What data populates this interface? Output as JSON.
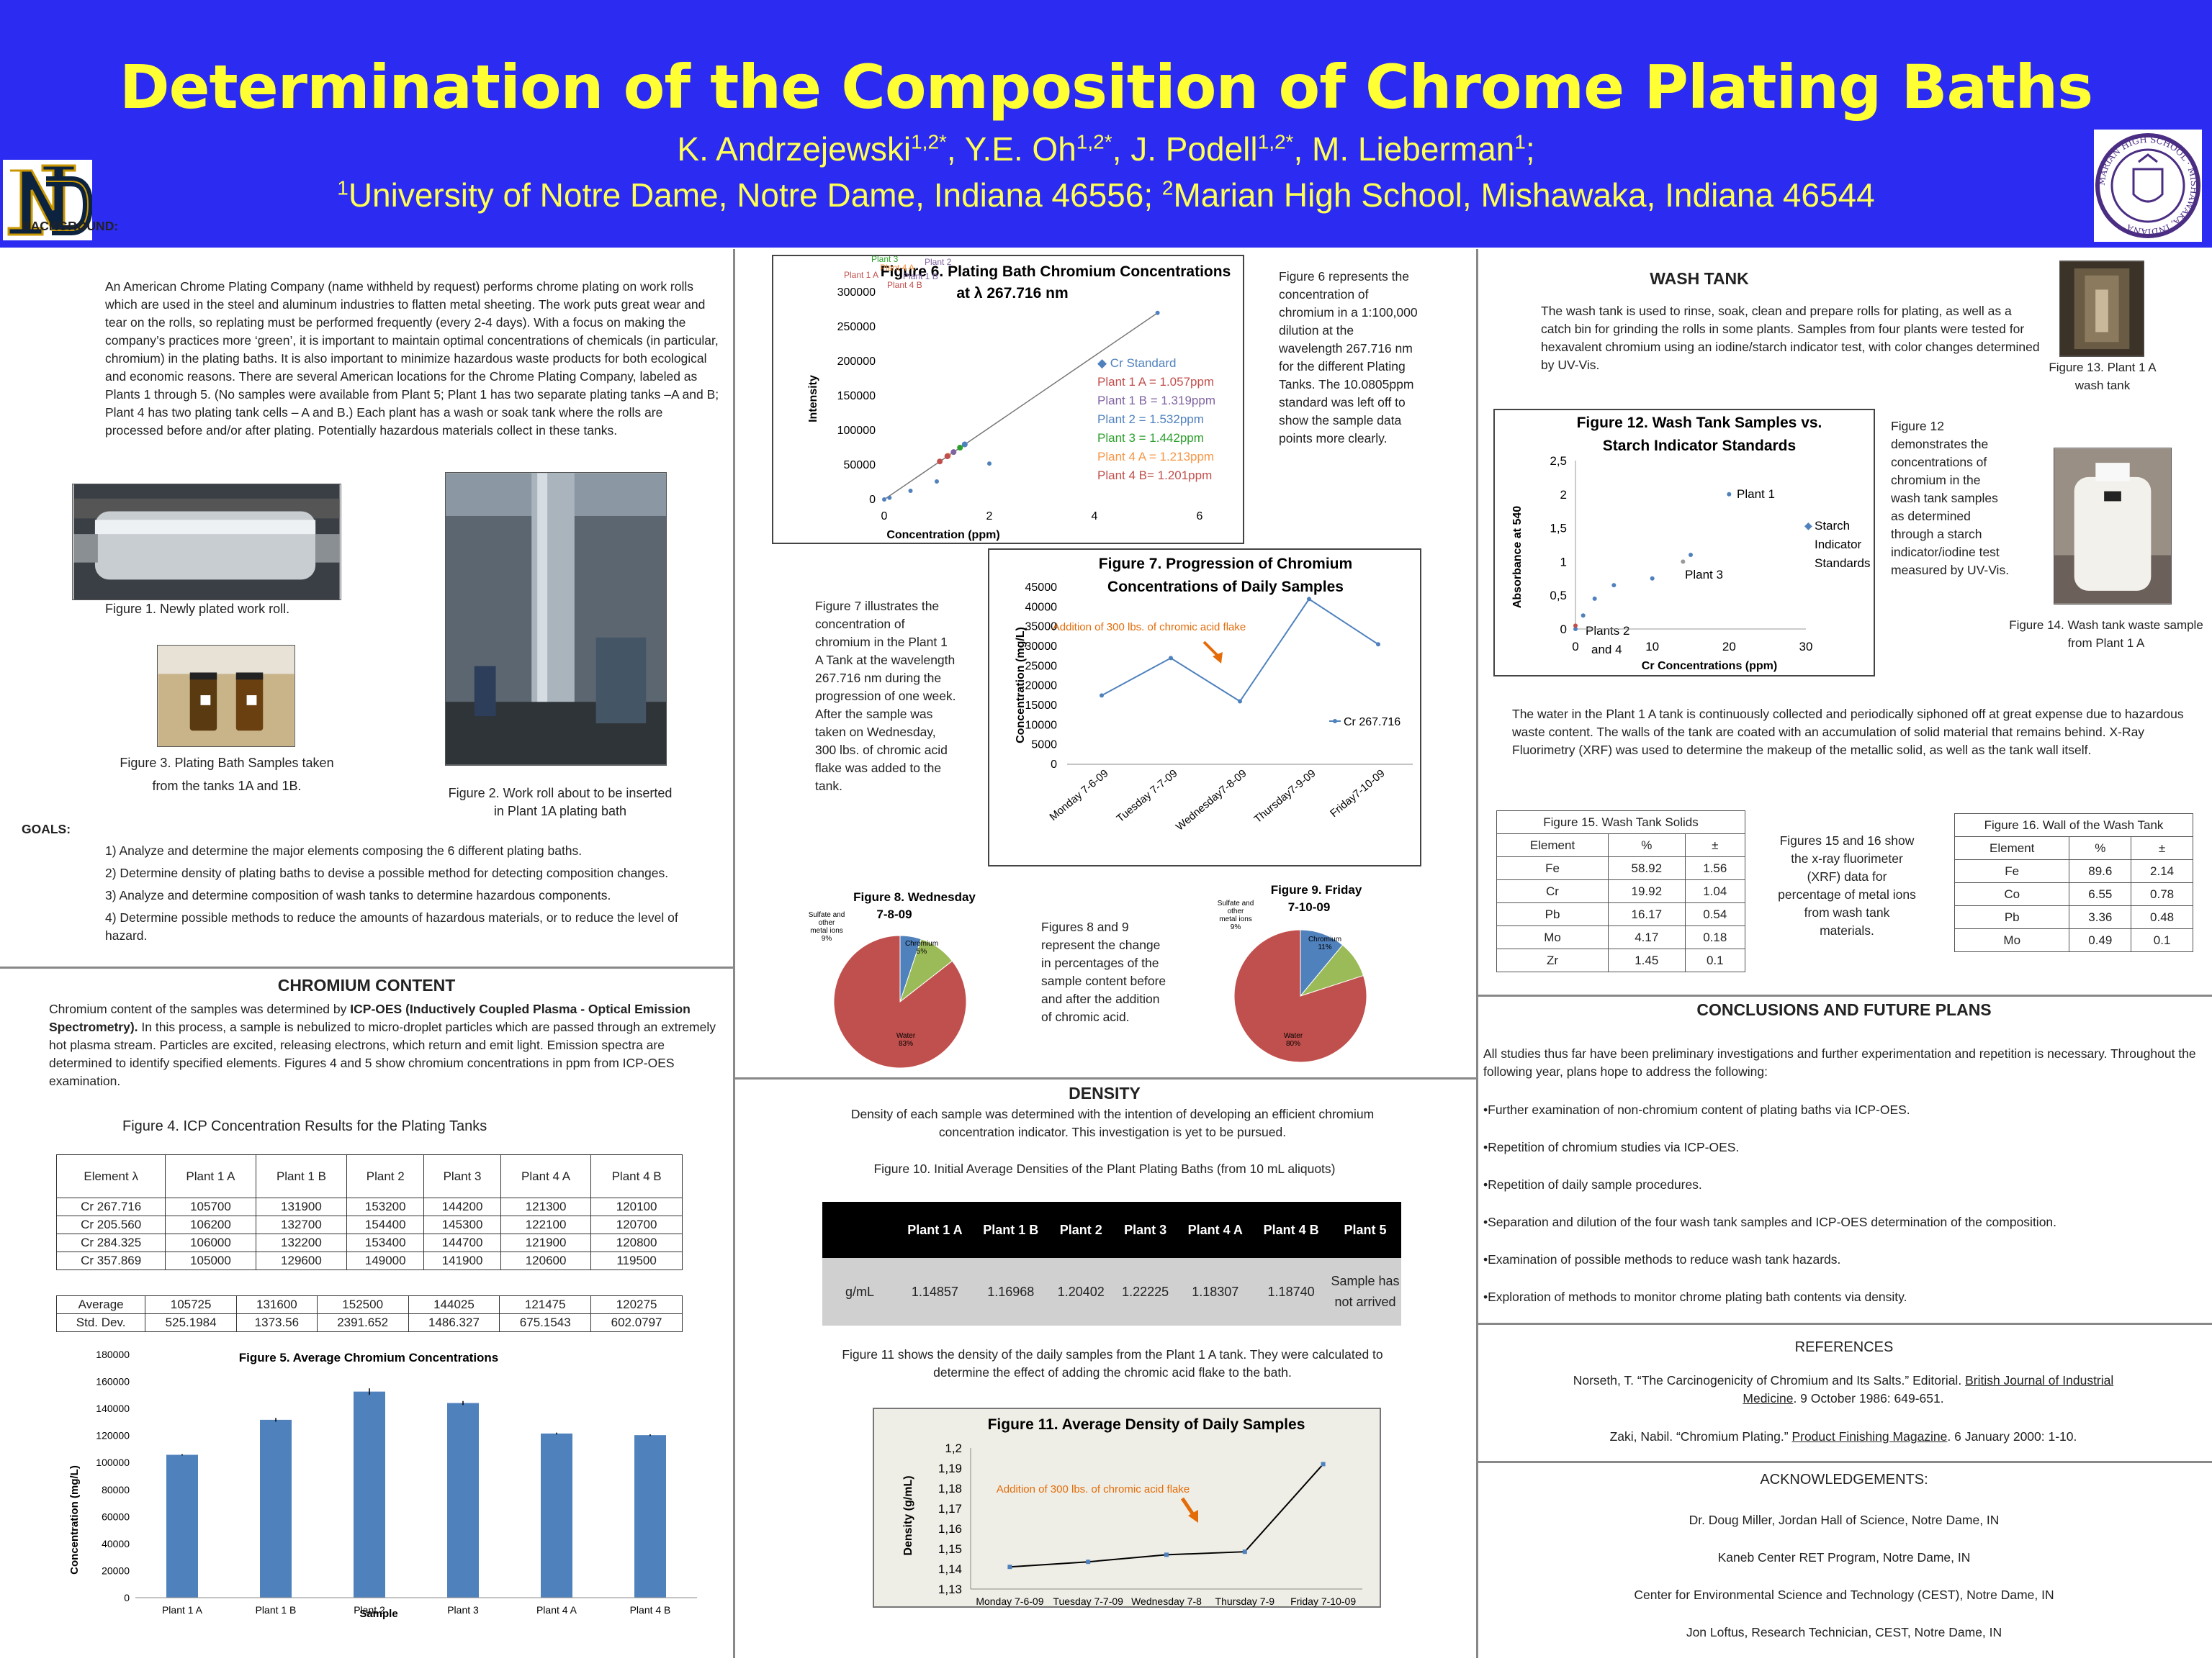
{
  "header": {
    "title": "Determination of the Composition of Chrome Plating Baths",
    "authors": [
      {
        "name": "K. Andrzejewski",
        "sup": "1,2*"
      },
      {
        "name": "Y.E. Oh",
        "sup": "1,2*"
      },
      {
        "name": "J. Podell",
        "sup": "1,2*"
      },
      {
        "name": "M. Lieberman",
        "sup": "1"
      }
    ],
    "aff1_sup": "1",
    "aff1": "University of Notre Dame, Notre Dame, Indiana 46556;",
    "aff2_sup": "2",
    "aff2": "Marian High School, Mishawaka, Indiana 46544",
    "seal_text": "MARIAN HIGH SCHOOL · MISHAWAKA, INDIANA",
    "colors": {
      "banner": "#2b2bf2",
      "title": "#ffff33"
    }
  },
  "background": {
    "heading": "BACKGROUND:",
    "text": "An American Chrome Plating Company (name withheld by request) performs chrome plating on work rolls which are used in the steel and aluminum industries to flatten metal sheeting.  The work puts great wear and tear on the rolls, so replating must be performed frequently (every 2-4 days).   With a focus on making the company’s practices more ‘green’, it is important to maintain optimal concentrations of chemicals (in particular, chromium) in the plating baths.   It is also important to minimize hazardous waste products for both ecological and economic reasons.  There are several American locations for the Chrome Plating Company, labeled as Plants 1 through 5. (No samples were available from Plant 5; Plant 1 has two separate plating tanks –A and B; Plant 4 has two plating tank cells – A and B.)  Each plant has a wash or soak tank where the rolls are processed before and/or after plating.  Potentially hazardous materials collect in these tanks.",
    "fig1": "Figure 1.  Newly plated work roll.",
    "fig2": "Figure 2.  Work roll about to be inserted in Plant 1A plating bath",
    "fig3a": "Figure 3.  Plating Bath Samples taken",
    "fig3b": "from the tanks 1A and 1B."
  },
  "goals": {
    "heading": "GOALS:",
    "items": [
      "1) Analyze and determine the major elements composing the 6 different plating baths.",
      "2) Determine density of plating baths to devise a possible method for detecting composition changes.",
      "3) Analyze and determine composition of wash tanks to determine hazardous components.",
      "4) Determine possible methods to reduce the amounts of hazardous materials, or to reduce the level of hazard."
    ]
  },
  "chromium": {
    "heading": "CHROMIUM CONTENT",
    "p1": "Chromium content of the samples was determined  by",
    "p1b": "ICP-OES (Inductively Coupled Plasma - Optical Emission Spectrometry).",
    "p2": "In this process, a sample is nebulized to micro-droplet particles which are passed through an extremely hot plasma stream.  Particles are excited, releasing electrons, which return and emit light.  Emission spectra are determined to identify specified elements.  Figures 4 and 5 show chromium concentrations in ppm from ICP-OES examination.",
    "fig4_title": "Figure 4.  ICP Concentration Results for the Plating Tanks",
    "fig4_headers": [
      "Element λ",
      "Plant 1 A",
      "Plant 1 B",
      "Plant 2",
      "Plant 3",
      "Plant 4 A",
      "Plant 4 B"
    ],
    "fig4_rows": [
      [
        "Cr 267.716",
        "105700",
        "131900",
        "153200",
        "144200",
        "121300",
        "120100"
      ],
      [
        "Cr 205.560",
        "106200",
        "132700",
        "154400",
        "145300",
        "122100",
        "120700"
      ],
      [
        "Cr 284.325",
        "106000",
        "132200",
        "153400",
        "144700",
        "121900",
        "120800"
      ],
      [
        "Cr 357.869",
        "105000",
        "129600",
        "149000",
        "141900",
        "120600",
        "119500"
      ]
    ],
    "fig4_stats": [
      [
        "Average",
        "105725",
        "131600",
        "152500",
        "144025",
        "121475",
        "120275"
      ],
      [
        "Std. Dev.",
        "525.1984",
        "1373.56",
        "2391.652",
        "1486.327",
        "675.1543",
        "602.0797"
      ]
    ]
  },
  "fig5": {
    "title": "Figure 5.  Average Chromium Concentrations",
    "xlabel": "Sample",
    "ylabel": "Concentration (mg/L)",
    "y_ticks": [
      "180000",
      "160000",
      "140000",
      "120000",
      "100000",
      "80000",
      "60000",
      "40000",
      "20000",
      "0"
    ]
  },
  "fig6": {
    "title1": "Figure 6.  Plating Bath Chromium Concentrations",
    "title2": "at λ 267.716 nm",
    "xlabel": "Concentration (ppm)",
    "ylabel": "Intensity",
    "y_ticks": [
      "300000",
      "250000",
      "200000",
      "150000",
      "100000",
      "50000",
      "0"
    ],
    "x_ticks": [
      "0",
      "2",
      "4",
      "6"
    ],
    "legend": [
      "Cr Standard",
      "Plant 1 A = 1.057ppm",
      "Plant 1 B = 1.319ppm",
      "Plant 2 = 1.532ppm",
      "Plant 3 = 1.442ppm",
      "Plant 4 A = 1.213ppm",
      "Plant 4 B= 1.201ppm"
    ],
    "point_labels": [
      "Plant 3",
      "Plant 4 A",
      "Plant 2",
      "Plant 1 A",
      "Plant 1 B",
      "Plant 4 B"
    ],
    "note": "Figure 6 represents the concentration of chromium  in a 1:100,000 dilution at the wavelength 267.716 nm for the different  Plating Tanks.  The 10.0805ppm standard was left off to show the sample data points more clearly."
  },
  "fig7": {
    "title1": "Figure 7.  Progression of Chromium",
    "title2": "Concentrations of Daily Samples",
    "ylabel": "Concentration (mg/L)",
    "y_ticks": [
      "45000",
      "40000",
      "35000",
      "30000",
      "25000",
      "20000",
      "15000",
      "10000",
      "5000",
      "0"
    ],
    "annotation": "Addition of 300 lbs. of chromic acid flake",
    "legend": "Cr 267.716",
    "note": "Figure 7 illustrates the concentration  of chromium in the Plant 1 A Tank at the wavelength 267.716 nm during the progression of  one week.  After the sample was taken on Wednesday, 300 lbs. of chromic acid flake was added to the tank."
  },
  "fig8": {
    "title": "Figure 8.  Wednesday",
    "title2": "7-8-09",
    "labels": [
      "Chromium 5%",
      "Sulfate and other metal ions 9%",
      "Water 83%"
    ]
  },
  "fig9": {
    "title": "Figure 9.  Friday",
    "title2": "7-10-09",
    "labels": [
      "Chromium 11%",
      "Sulfate and other metal ions 9%",
      "Water 80%"
    ]
  },
  "fig89_note": "Figures 8 and 9 represent  the change in percentages  of the sample content before and after the addition of chromic acid.",
  "density": {
    "heading": "DENSITY",
    "p1": "Density of each sample was determined with the intention of developing an efficient chromium concentration indicator.  This investigation is yet to be pursued.",
    "fig10_title": "Figure 10.  Initial Average Densities of the Plant Plating Baths (from 10 mL aliquots)",
    "fig10_headers": [
      "",
      "Plant 1 A",
      "Plant 1 B",
      "Plant 2",
      "Plant 3",
      "Plant 4 A",
      "Plant 4 B",
      "Plant 5"
    ],
    "fig10_row": [
      "g/mL",
      "1.14857",
      "1.16968",
      "1.20402",
      "1.22225",
      "1.18307",
      "1.18740",
      "Sample has not arrived"
    ],
    "p2": "Figure 11 shows the density of the daily samples from the Plant 1 A tank.  They  were calculated to determine the effect  of adding the chromic acid flake to the bath."
  },
  "fig11": {
    "title": "Figure 11.  Average Density of Daily Samples",
    "ylabel": "Density (g/mL)",
    "annotation": "Addition of 300 lbs. of chromic acid flake",
    "y_ticks": [
      "1,2",
      "1,19",
      "1,18",
      "1,17",
      "1,16",
      "1,15",
      "1,14",
      "1,13"
    ]
  },
  "wash": {
    "heading": "WASH TANK",
    "p1": "The wash tank is used to rinse, soak, clean and prepare rolls for plating, as well as a catch bin for grinding the rolls in some plants.  Samples from  four plants were tested for hexavalent chromium using an iodine/starch indicator test, with color changes determined by UV-Vis.",
    "fig13": "Figure 13.  Plant 1 A wash tank",
    "fig14": "Figure 14.  Wash tank waste sample from Plant 1 A",
    "fig12_note": "Figure  12 demonstrates the concentrations of chromium in the wash tank samples as determined through a starch indicator/iodine test measured by UV-Vis.",
    "p2": "The water in the Plant 1 A tank is continuously collected and periodically siphoned off at great expense due to hazardous waste content.  The walls of the tank are coated with an accumulation of solid material that remains behind.  X-Ray Fluorimetry (XRF) was used to determine the makeup of the metallic solid, as well as the tank wall itself.",
    "fig1516_note": "Figures 15 and 16 show the x-ray fluorimeter (XRF) data  for percentage of metal ions from wash tank materials."
  },
  "fig12": {
    "title1": "Figure 12. Wash Tank Samples vs.",
    "title2": "Starch Indicator Standards",
    "ylabel": "Absorbance at 540",
    "xlabel": "Cr Concentrations (ppm)",
    "y_ticks": [
      "2,5",
      "2",
      "1,5",
      "1",
      "0,5",
      "0"
    ],
    "x_ticks": [
      "0",
      "10",
      "20",
      "30"
    ],
    "labels": [
      "Plant 1",
      "Plant 3",
      "Plants 2",
      "and 4",
      "Starch",
      "Indicator",
      "Standards"
    ]
  },
  "fig15": {
    "title": "Figure 15. Wash Tank Solids",
    "headers": [
      "Element",
      "%",
      "±"
    ],
    "rows": [
      [
        "Fe",
        "58.92",
        "1.56"
      ],
      [
        "Cr",
        "19.92",
        "1.04"
      ],
      [
        "Pb",
        "16.17",
        "0.54"
      ],
      [
        "Mo",
        "4.17",
        "0.18"
      ],
      [
        "Zr",
        "1.45",
        "0.1"
      ]
    ]
  },
  "fig16": {
    "title": "Figure 16. Wall of the Wash Tank",
    "headers": [
      "Element",
      "%",
      "±"
    ],
    "rows": [
      [
        "Fe",
        "89.6",
        "2.14"
      ],
      [
        "Co",
        "6.55",
        "0.78"
      ],
      [
        "Pb",
        "3.36",
        "0.48"
      ],
      [
        "Mo",
        "0.49",
        "0.1"
      ]
    ]
  },
  "conclusions": {
    "heading": "CONCLUSIONS AND FUTURE PLANS",
    "intro": "All studies thus far have been preliminary investigations and further experimentation and repetition is necessary.  Throughout the following year, plans hope to address the following:",
    "items": [
      "•Further examination of non-chromium content of plating baths via ICP-OES.",
      "•Repetition of chromium studies via ICP-OES.",
      "•Repetition of daily sample procedures.",
      "•Separation and dilution of the four wash tank samples and ICP-OES determination of the composition.",
      "•Examination of possible methods to reduce wash tank hazards.",
      "•Exploration of methods to monitor chrome plating bath contents via density."
    ]
  },
  "references": {
    "heading": "REFERENCES",
    "r1a": "Norseth, T.  “The Carcinogenicity of Chromium and Its Salts.” Editorial.",
    "r1b": "British Journal of Industrial",
    "r1c": "Medicine",
    "r1d": ".  9 October  1986: 649-651.",
    "r2a": "Zaki, Nabil. “Chromium Plating.”",
    "r2b": "Product Finishing Magazine",
    "r2c": ". 6 January 2000: 1-10."
  },
  "ack": {
    "heading": "ACKNOWLEDGEMENTS:",
    "items": [
      "Dr. Doug Miller, Jordan Hall of Science, Notre Dame, IN",
      "Kaneb Center RET Program, Notre Dame, IN",
      "Center for Environmental Science and Technology (CEST), Notre Dame, IN",
      "Jon Loftus, Research Technician, CEST, Notre Dame, IN"
    ]
  },
  "chart_data": [
    {
      "type": "bar",
      "title": "Figure 5.  Average Chromium Concentrations",
      "xlabel": "Sample",
      "ylabel": "Concentration (mg/L)",
      "categories": [
        "Plant 1 A",
        "Plant 1 B",
        "Plant 2",
        "Plant 3",
        "Plant 4 A",
        "Plant 4 B"
      ],
      "values": [
        105725,
        131600,
        152500,
        144025,
        121475,
        120275
      ],
      "errors": [
        525,
        1374,
        2392,
        1486,
        675,
        602
      ],
      "ylim": [
        0,
        180000
      ],
      "color": "#4f81bd"
    },
    {
      "type": "scatter",
      "title": "Figure 6.  Plating Bath Chromium Concentrations at λ 267.716 nm",
      "xlabel": "Concentration (ppm)",
      "ylabel": "Intensity",
      "xlim": [
        0,
        6
      ],
      "ylim": [
        0,
        300000
      ],
      "series": [
        {
          "name": "Cr Standard",
          "x": [
            0,
            0.1,
            0.5,
            1,
            2,
            5.2
          ],
          "y": [
            0,
            2500,
            12500,
            26000,
            52000,
            270000
          ],
          "color": "#4f81bd"
        },
        {
          "name": "Plant 1 A = 1.057ppm",
          "x": [
            1.057
          ],
          "y": [
            55000
          ],
          "color": "#c0504d"
        },
        {
          "name": "Plant 1 B = 1.319ppm",
          "x": [
            1.319
          ],
          "y": [
            68600
          ],
          "color": "#8064a2"
        },
        {
          "name": "Plant 2 = 1.532ppm",
          "x": [
            1.532
          ],
          "y": [
            79700
          ],
          "color": "#4f81bd"
        },
        {
          "name": "Plant 3 = 1.442ppm",
          "x": [
            1.442
          ],
          "y": [
            75000
          ],
          "color": "#2ca02c"
        },
        {
          "name": "Plant 4 A = 1.213ppm",
          "x": [
            1.213
          ],
          "y": [
            63100
          ],
          "color": "#f79646"
        },
        {
          "name": "Plant 4 B= 1.201ppm",
          "x": [
            1.201
          ],
          "y": [
            62500
          ],
          "color": "#c0504d"
        }
      ]
    },
    {
      "type": "line",
      "title": "Figure 7.  Progression of Chromium Concentrations of Daily Samples",
      "ylabel": "Concentration (mg/L)",
      "categories": [
        "Monday 7-6-09",
        "Tuesday 7-7-09",
        "Wednesday7-8-09",
        "Thursday7-9-09",
        "Friday7-10-09"
      ],
      "series": [
        {
          "name": "Cr 267.716",
          "values": [
            17500,
            27000,
            16000,
            42000,
            30500
          ]
        }
      ],
      "ylim": [
        0,
        45000
      ]
    },
    {
      "type": "pie",
      "title": "Figure 8.  Wednesday 7-8-09",
      "labels": [
        "Chromium",
        "Sulfate and other metal ions",
        "Water"
      ],
      "values": [
        5,
        9,
        83
      ],
      "colors": [
        "#4f81bd",
        "#9bbb59",
        "#c0504d"
      ]
    },
    {
      "type": "pie",
      "title": "Figure 9.  Friday 7-10-09",
      "labels": [
        "Chromium",
        "Sulfate and other metal ions",
        "Water"
      ],
      "values": [
        11,
        9,
        80
      ],
      "colors": [
        "#4f81bd",
        "#9bbb59",
        "#c0504d"
      ]
    },
    {
      "type": "line",
      "title": "Figure 11.  Average Density of Daily Samples",
      "ylabel": "Density (g/mL)",
      "categories": [
        "Monday 7-6-09",
        "Tuesday 7-7-09",
        "Wednesday 7-8-09",
        "Thursday 7-9-09",
        "Friday 7-10-09"
      ],
      "series": [
        {
          "values": [
            1.141,
            1.1435,
            1.147,
            1.1485,
            1.192
          ]
        }
      ],
      "ylim": [
        1.13,
        1.2
      ]
    },
    {
      "type": "scatter",
      "title": "Figure 12. Wash Tank Samples vs. Starch Indicator Standards",
      "xlabel": "Cr Concentrations (ppm)",
      "ylabel": "Absorbance at 540",
      "xlim": [
        0,
        30
      ],
      "ylim": [
        0,
        2.5
      ],
      "series": [
        {
          "name": "Starch Indicator Standards",
          "x": [
            0,
            1,
            2.5,
            5,
            10,
            15
          ],
          "y": [
            0,
            0.2,
            0.45,
            0.65,
            0.75,
            1.1
          ],
          "color": "#4f81bd"
        },
        {
          "name": "Plant 1",
          "x": [
            20
          ],
          "y": [
            2
          ],
          "color": "#4f81bd"
        },
        {
          "name": "Plant 3",
          "x": [
            14
          ],
          "y": [
            1.0
          ],
          "color": "#999999"
        },
        {
          "name": "Plants 2 and 4",
          "x": [
            0
          ],
          "y": [
            0.05
          ],
          "color": "#c0504d"
        }
      ]
    }
  ]
}
